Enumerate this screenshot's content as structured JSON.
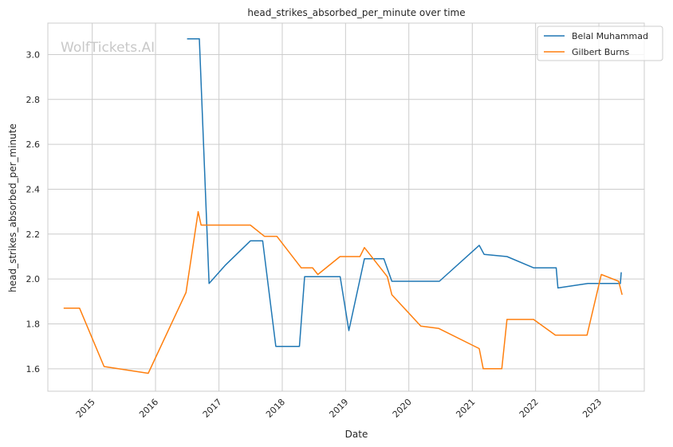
{
  "chart_data": {
    "type": "line",
    "title": "head_strikes_absorbed_per_minute over time",
    "xlabel": "Date",
    "ylabel": "head_strikes_absorbed_per_minute",
    "watermark": "WolfTickets.AI",
    "xlim": [
      "2014-04-20",
      "2023-09-20"
    ],
    "ylim": [
      1.5,
      3.14
    ],
    "x_ticks": [
      "2015",
      "2016",
      "2017",
      "2018",
      "2019",
      "2020",
      "2021",
      "2022",
      "2023"
    ],
    "y_ticks": [
      1.6,
      1.8,
      2.0,
      2.2,
      2.4,
      2.6,
      2.8,
      3.0
    ],
    "grid": true,
    "legend_position": "top-right",
    "series": [
      {
        "name": "Belal Muhammad",
        "color": "#1f77b4",
        "points": [
          [
            "2016-07-01",
            3.07
          ],
          [
            "2016-09-10",
            3.07
          ],
          [
            "2016-11-05",
            1.98
          ],
          [
            "2017-02-05",
            2.06
          ],
          [
            "2017-07-01",
            2.17
          ],
          [
            "2017-09-10",
            2.17
          ],
          [
            "2017-11-25",
            1.7
          ],
          [
            "2018-04-10",
            1.7
          ],
          [
            "2018-05-10",
            2.01
          ],
          [
            "2018-12-01",
            2.01
          ],
          [
            "2019-01-20",
            1.77
          ],
          [
            "2019-04-20",
            2.09
          ],
          [
            "2019-08-10",
            2.09
          ],
          [
            "2019-09-25",
            1.99
          ],
          [
            "2020-06-01",
            1.99
          ],
          [
            "2020-06-25",
            1.99
          ],
          [
            "2021-02-10",
            2.15
          ],
          [
            "2021-03-10",
            2.11
          ],
          [
            "2021-07-20",
            2.1
          ],
          [
            "2021-12-20",
            2.05
          ],
          [
            "2022-04-30",
            2.05
          ],
          [
            "2022-05-10",
            1.96
          ],
          [
            "2022-10-30",
            1.98
          ],
          [
            "2023-05-05",
            1.98
          ],
          [
            "2023-05-10",
            2.03
          ]
        ]
      },
      {
        "name": "Gilbert Burns",
        "color": "#ff7f0e",
        "points": [
          [
            "2014-07-20",
            1.87
          ],
          [
            "2014-10-20",
            1.87
          ],
          [
            "2015-03-10",
            1.61
          ],
          [
            "2015-11-20",
            1.58
          ],
          [
            "2016-06-25",
            1.94
          ],
          [
            "2016-09-03",
            2.3
          ],
          [
            "2016-09-20",
            2.24
          ],
          [
            "2017-07-01",
            2.24
          ],
          [
            "2017-09-20",
            2.19
          ],
          [
            "2017-12-01",
            2.19
          ],
          [
            "2018-04-20",
            2.05
          ],
          [
            "2018-06-25",
            2.05
          ],
          [
            "2018-07-25",
            2.02
          ],
          [
            "2018-11-30",
            2.1
          ],
          [
            "2019-03-25",
            2.1
          ],
          [
            "2019-04-20",
            2.14
          ],
          [
            "2019-08-30",
            2.01
          ],
          [
            "2019-09-25",
            1.93
          ],
          [
            "2020-03-10",
            1.79
          ],
          [
            "2020-06-20",
            1.78
          ],
          [
            "2021-02-10",
            1.69
          ],
          [
            "2021-03-05",
            1.6
          ],
          [
            "2021-06-20",
            1.6
          ],
          [
            "2021-07-20",
            1.82
          ],
          [
            "2021-12-20",
            1.82
          ],
          [
            "2022-04-25",
            1.75
          ],
          [
            "2022-10-25",
            1.75
          ],
          [
            "2023-01-15",
            2.02
          ],
          [
            "2023-04-25",
            1.99
          ],
          [
            "2023-05-15",
            1.93
          ]
        ]
      }
    ]
  }
}
